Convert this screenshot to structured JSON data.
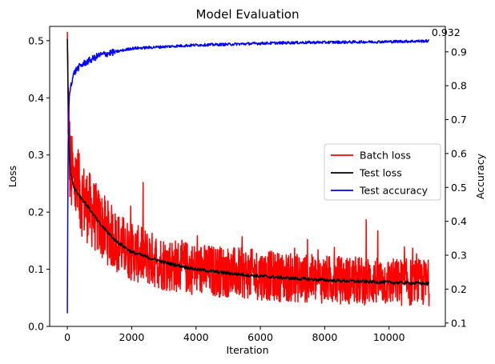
{
  "chart_data": {
    "type": "line",
    "title": "Model Evaluation",
    "xlabel": "Iteration",
    "ylabel_left": "Loss",
    "ylabel_right": "Accuracy",
    "xlim": [
      -550,
      11750
    ],
    "ylim_left": [
      0.0,
      0.525
    ],
    "ylim_right": [
      0.09,
      0.975
    ],
    "x_ticks": [
      0,
      2000,
      4000,
      6000,
      8000,
      10000
    ],
    "y_ticks_left": [
      0.0,
      0.1,
      0.2,
      0.3,
      0.4,
      0.5
    ],
    "y_ticks_right": [
      0.1,
      0.2,
      0.3,
      0.4,
      0.5,
      0.6,
      0.7,
      0.8,
      0.9
    ],
    "x_tick_labels": [
      "0",
      "2000",
      "4000",
      "6000",
      "8000",
      "10000"
    ],
    "y_tick_labels_left": [
      "0.0",
      "0.1",
      "0.2",
      "0.3",
      "0.4",
      "0.5"
    ],
    "y_tick_labels_right": [
      "0.1",
      "0.2",
      "0.3",
      "0.4",
      "0.5",
      "0.6",
      "0.7",
      "0.8",
      "0.9"
    ],
    "legend_position": "right",
    "grid": false,
    "annotation": {
      "x": 11250,
      "y": 0.932,
      "text": "0.932"
    },
    "series": [
      {
        "name": "Batch loss",
        "axis": "left",
        "color": "#ff0000",
        "noise": "high",
        "x": [
          0,
          50,
          100,
          200,
          300,
          500,
          700,
          1000,
          1500,
          2000,
          3000,
          4000,
          5000,
          6000,
          7000,
          8000,
          9000,
          10000,
          11250
        ],
        "y": [
          0.48,
          0.32,
          0.27,
          0.25,
          0.24,
          0.22,
          0.205,
          0.18,
          0.15,
          0.13,
          0.11,
          0.1,
          0.095,
          0.09,
          0.085,
          0.082,
          0.08,
          0.078,
          0.076
        ]
      },
      {
        "name": "Test loss",
        "axis": "left",
        "color": "#000000",
        "noise": "low",
        "x": [
          0,
          30,
          60,
          100,
          200,
          300,
          500,
          700,
          1000,
          1500,
          2000,
          3000,
          4000,
          5000,
          6000,
          7000,
          8000,
          9000,
          10000,
          11250
        ],
        "y": [
          0.5,
          0.39,
          0.3,
          0.27,
          0.245,
          0.235,
          0.22,
          0.205,
          0.18,
          0.15,
          0.13,
          0.112,
          0.1,
          0.093,
          0.088,
          0.084,
          0.081,
          0.079,
          0.077,
          0.075
        ]
      },
      {
        "name": "Test accuracy",
        "axis": "right",
        "color": "#0000ff",
        "noise": "low",
        "x": [
          0,
          20,
          50,
          100,
          200,
          300,
          500,
          700,
          1000,
          1500,
          2000,
          3000,
          4000,
          5000,
          6000,
          7000,
          8000,
          9000,
          10000,
          11250
        ],
        "y": [
          0.13,
          0.6,
          0.75,
          0.8,
          0.835,
          0.85,
          0.865,
          0.875,
          0.89,
          0.9,
          0.91,
          0.915,
          0.92,
          0.922,
          0.925,
          0.927,
          0.928,
          0.929,
          0.93,
          0.932
        ]
      }
    ]
  }
}
